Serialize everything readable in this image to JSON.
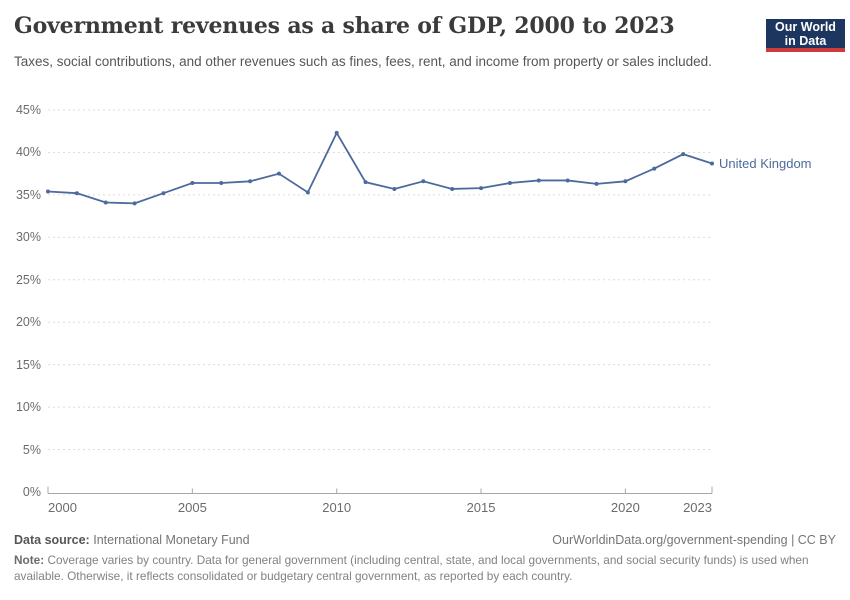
{
  "header": {
    "title": "Government revenues as a share of GDP, 2000 to 2023",
    "subtitle": "Taxes, social contributions, and other revenues such as fines, fees, rent, and income from property or sales included.",
    "logo_line1": "Our World",
    "logo_line2": "in Data"
  },
  "colors": {
    "series_line": "#4c6a9c",
    "grid_line": "#dcdcdc",
    "axis_line": "#a8a8a8",
    "logo_background": "#1d3660",
    "logo_bar": "#cc3b3b"
  },
  "chart_data": {
    "type": "line",
    "title": "Government revenues as a share of GDP, 2000 to 2023",
    "xlabel": "",
    "ylabel": "",
    "xlim": [
      2000,
      2023
    ],
    "ylim": [
      0,
      45
    ],
    "grid": "horizontal-dashed",
    "legend_position": "end-of-line",
    "x_ticks": [
      "2000",
      "2005",
      "2010",
      "2015",
      "2020",
      "2023"
    ],
    "x_tick_values": [
      2000,
      2005,
      2010,
      2015,
      2020,
      2023
    ],
    "y_ticks": [
      "0%",
      "5%",
      "10%",
      "15%",
      "20%",
      "25%",
      "30%",
      "35%",
      "40%",
      "45%"
    ],
    "y_tick_values": [
      0,
      5,
      10,
      15,
      20,
      25,
      30,
      35,
      40,
      45
    ],
    "series": [
      {
        "name": "United Kingdom",
        "color": "#4c6a9c",
        "x": [
          2000,
          2001,
          2002,
          2003,
          2004,
          2005,
          2006,
          2007,
          2008,
          2009,
          2010,
          2011,
          2012,
          2013,
          2014,
          2015,
          2016,
          2017,
          2018,
          2019,
          2020,
          2021,
          2022,
          2023
        ],
        "values": [
          35.4,
          35.2,
          34.1,
          34.0,
          35.2,
          36.4,
          36.4,
          36.6,
          37.5,
          35.3,
          42.3,
          36.5,
          35.7,
          36.6,
          35.7,
          35.8,
          36.4,
          36.7,
          36.7,
          36.3,
          36.6,
          38.1,
          39.8,
          38.7
        ]
      }
    ]
  },
  "footer": {
    "source_label": "Data source:",
    "source_value": "International Monetary Fund",
    "link": "OurWorldinData.org/government-spending | CC BY",
    "note_label": "Note:",
    "note_text": "Coverage varies by country. Data for general government (including central, state, and local governments, and social security funds) is used when available. Otherwise, it reflects consolidated or budgetary central government, as reported by each country."
  }
}
